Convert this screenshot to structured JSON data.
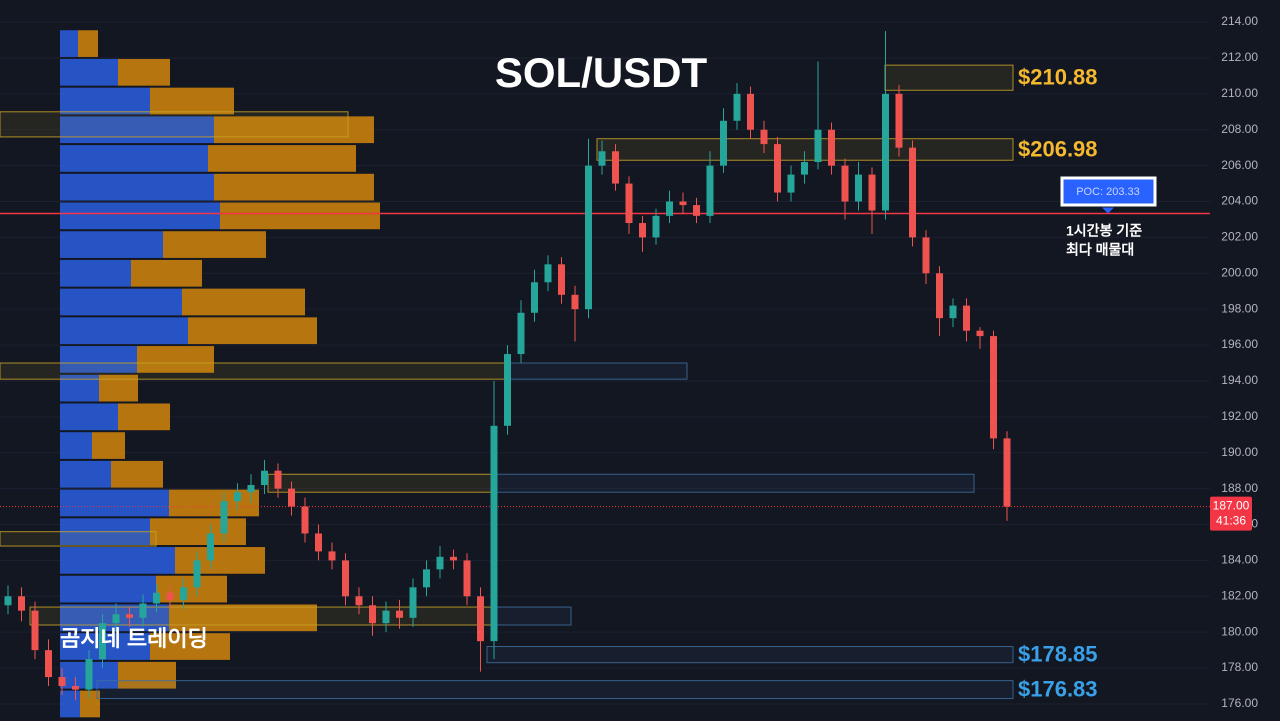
{
  "chart_data": {
    "type": "candlestick",
    "title": "SOL/USDT",
    "watermark": "곰지네 트레이딩",
    "up_color": "#26a69a",
    "down_color": "#ef5350",
    "open": [
      181.5,
      182.0,
      181.2,
      179.0,
      177.5,
      177.0,
      176.8,
      178.5,
      180.5,
      181.0,
      180.8,
      181.6,
      182.2,
      181.8,
      182.5,
      184.0,
      185.5,
      187.3,
      187.8,
      188.2,
      189.0,
      188.0,
      187.0,
      185.5,
      184.5,
      184.0,
      182.0,
      181.5,
      180.5,
      181.2,
      180.8,
      182.5,
      183.5,
      184.2,
      184.0,
      182.0,
      179.5,
      191.5,
      195.5,
      197.8,
      199.5,
      200.5,
      198.8,
      198.0,
      206.0,
      206.8,
      205.0,
      202.8,
      202.0,
      203.2,
      204.0,
      203.8,
      203.2,
      206.0,
      208.5,
      210.0,
      208.0,
      207.2,
      204.5,
      205.5,
      206.2,
      208.0,
      206.0,
      204.0,
      205.5,
      203.5,
      210.0,
      207.0,
      202.0,
      200.0,
      197.5,
      198.2,
      196.8,
      196.5,
      190.8
    ],
    "high": [
      182.6,
      182.5,
      181.7,
      179.6,
      178.0,
      177.5,
      179.0,
      181.0,
      181.6,
      181.4,
      182.1,
      182.7,
      182.6,
      183.0,
      184.5,
      186.0,
      187.8,
      188.3,
      188.8,
      189.6,
      189.4,
      188.4,
      187.5,
      186.0,
      185.0,
      184.4,
      182.5,
      182.0,
      181.7,
      181.8,
      183.0,
      184.0,
      184.8,
      184.6,
      184.4,
      182.5,
      194.0,
      196.0,
      198.5,
      200.2,
      201.0,
      200.9,
      199.3,
      207.5,
      207.4,
      207.2,
      205.4,
      203.2,
      203.6,
      204.6,
      204.5,
      204.2,
      206.8,
      209.2,
      210.6,
      210.4,
      208.5,
      207.6,
      206.0,
      206.8,
      211.8,
      208.4,
      206.4,
      206.2,
      205.9,
      213.5,
      210.5,
      207.4,
      202.4,
      200.4,
      198.6,
      198.6,
      197.0,
      196.8,
      191.2
    ],
    "low": [
      181.0,
      180.6,
      178.5,
      177.0,
      176.5,
      176.2,
      176.3,
      178.0,
      180.0,
      180.3,
      180.3,
      181.1,
      181.3,
      181.3,
      182.0,
      183.5,
      185.0,
      186.8,
      187.2,
      187.7,
      187.5,
      186.5,
      185.0,
      184.0,
      183.5,
      181.5,
      181.0,
      179.8,
      180.0,
      180.2,
      180.3,
      182.0,
      183.0,
      183.5,
      181.5,
      177.8,
      178.5,
      191.0,
      195.0,
      197.3,
      199.0,
      198.3,
      196.2,
      197.5,
      205.5,
      204.6,
      202.2,
      201.2,
      201.6,
      202.8,
      203.3,
      202.8,
      202.8,
      205.6,
      208.0,
      207.5,
      206.7,
      204.0,
      204.0,
      205.0,
      205.8,
      205.5,
      203.0,
      203.5,
      202.2,
      203.0,
      206.5,
      201.5,
      199.4,
      196.5,
      197.0,
      196.2,
      195.8,
      190.2,
      186.2
    ],
    "close": [
      182.0,
      181.2,
      179.0,
      177.5,
      177.0,
      176.8,
      178.5,
      180.5,
      181.0,
      180.8,
      181.6,
      182.2,
      181.8,
      182.5,
      184.0,
      185.5,
      187.3,
      187.8,
      188.2,
      189.0,
      188.0,
      187.0,
      185.5,
      184.5,
      184.0,
      182.0,
      181.5,
      180.5,
      181.2,
      180.8,
      182.5,
      183.5,
      184.2,
      184.0,
      182.0,
      179.5,
      191.5,
      195.5,
      197.8,
      199.5,
      200.5,
      198.8,
      198.0,
      206.0,
      206.8,
      205.0,
      202.8,
      202.0,
      203.2,
      204.0,
      203.8,
      203.2,
      206.0,
      208.5,
      210.0,
      208.0,
      207.2,
      204.5,
      205.5,
      206.2,
      208.0,
      206.0,
      204.0,
      205.5,
      203.5,
      210.0,
      207.0,
      202.0,
      200.0,
      197.5,
      198.2,
      196.8,
      196.5,
      190.8,
      187.0
    ],
    "ylim": [
      175.05,
      215.23
    ],
    "yticks": [
      {
        "value": 176,
        "label": "176.00"
      },
      {
        "value": 178,
        "label": "178.00"
      },
      {
        "value": 180,
        "label": "180.00"
      },
      {
        "value": 182,
        "label": "182.00"
      },
      {
        "value": 184,
        "label": "184.00"
      },
      {
        "value": 186,
        "label": "186.00"
      },
      {
        "value": 188,
        "label": "188.00"
      },
      {
        "value": 190,
        "label": "190.00"
      },
      {
        "value": 192,
        "label": "192.00"
      },
      {
        "value": 194,
        "label": "194.00"
      },
      {
        "value": 196,
        "label": "196.00"
      },
      {
        "value": 198,
        "label": "198.00"
      },
      {
        "value": 200,
        "label": "200.00"
      },
      {
        "value": 202,
        "label": "202.00"
      },
      {
        "value": 204,
        "label": "204.00"
      },
      {
        "value": 206,
        "label": "206.00"
      },
      {
        "value": 208,
        "label": "208.00"
      },
      {
        "value": 210,
        "label": "210.00"
      },
      {
        "value": 212,
        "label": "212.00"
      },
      {
        "value": 214,
        "label": "214.00"
      }
    ],
    "grid": true,
    "last_price": {
      "value": 187.0,
      "label": "187.00",
      "countdown": "41:36",
      "color": "#f23645"
    },
    "poc": {
      "value": 203.33,
      "label": "POC: 203.33",
      "note": [
        "1시간봉 기준",
        "최다 매물대"
      ],
      "color": "#f23645"
    },
    "profile": {
      "buy_color": "#2a5bd7",
      "sell_color": "#d4860b",
      "bins": [
        213.6,
        212.0,
        210.4,
        208.8,
        207.2,
        205.6,
        204.0,
        202.4,
        200.8,
        199.2,
        197.6,
        196.0,
        194.4,
        192.8,
        191.2,
        189.6,
        188.0,
        186.4,
        184.8,
        183.2,
        181.6,
        180.0,
        178.4,
        176.8,
        175.2
      ],
      "buy": [
        18,
        58,
        90,
        154,
        148,
        154,
        160,
        103,
        71,
        122,
        128,
        77,
        39,
        58,
        32,
        51,
        109,
        90,
        115,
        96,
        109,
        90,
        58,
        20
      ],
      "sell": [
        20,
        52,
        84,
        160,
        148,
        160,
        160,
        103,
        71,
        123,
        129,
        77,
        39,
        52,
        33,
        52,
        90,
        96,
        90,
        71,
        148,
        80,
        58,
        20
      ]
    },
    "zones": [
      {
        "label": "$210.88",
        "low": 210.2,
        "high": 211.6,
        "color": "#c9a227",
        "label_color": "#f5b82e"
      },
      {
        "label": "$206.98",
        "low": 206.3,
        "high": 207.5,
        "color": "#c9a227",
        "label_color": "#f5b82e"
      },
      {
        "low": 207.6,
        "high": 209.0,
        "color": "#c9a227"
      },
      {
        "low": 194.1,
        "high": 195.0,
        "color": "#c9a227"
      },
      {
        "low": 194.1,
        "high": 195.0,
        "color": "#3d6d9e"
      },
      {
        "low": 187.8,
        "high": 188.8,
        "color": "#c9a227"
      },
      {
        "low": 187.8,
        "high": 188.8,
        "color": "#3d6d9e"
      },
      {
        "low": 184.8,
        "high": 185.6,
        "color": "#c9a227"
      },
      {
        "low": 180.4,
        "high": 181.4,
        "color": "#c9a227"
      },
      {
        "low": 180.4,
        "high": 181.4,
        "color": "#3d6d9e"
      },
      {
        "label": "$178.85",
        "low": 178.3,
        "high": 179.2,
        "color": "#3d6d9e",
        "label_color": "#3aa0e8"
      },
      {
        "label": "$176.83",
        "low": 176.3,
        "high": 177.3,
        "color": "#3d6d9e",
        "label_color": "#3aa0e8"
      }
    ]
  }
}
